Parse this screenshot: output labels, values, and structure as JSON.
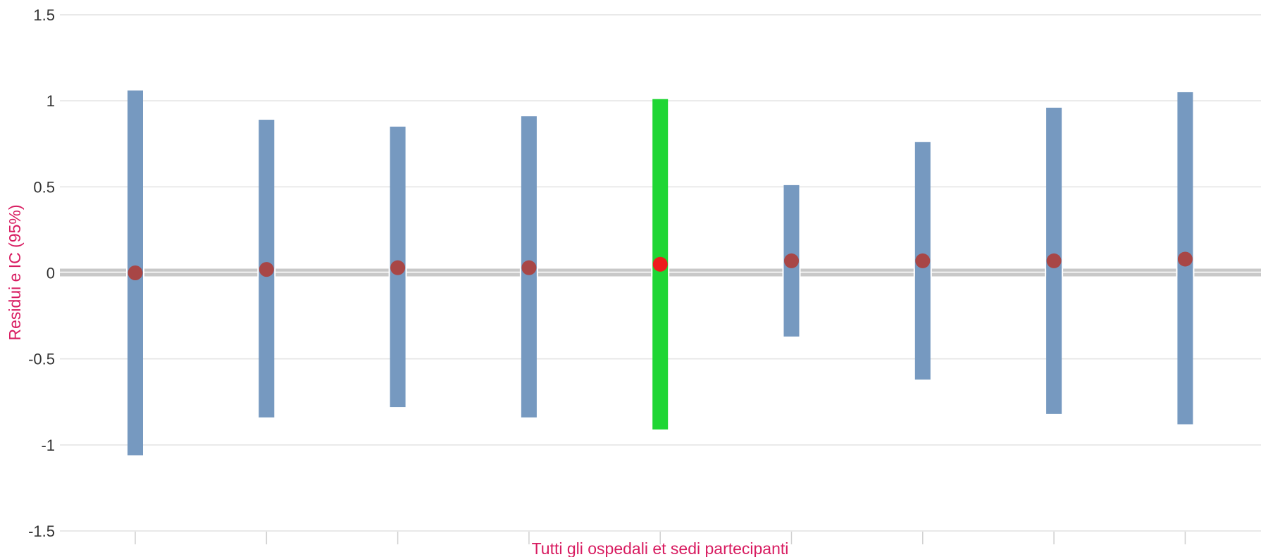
{
  "chart_data": {
    "type": "error-bar",
    "xlabel": "Tutti gli ospedali et sedi partecipanti",
    "ylabel": "Residui e IC (95%)",
    "ylim": [
      -1.5,
      1.5
    ],
    "yticks": [
      {
        "value": 1.5,
        "label": "1.5"
      },
      {
        "value": 1,
        "label": "1"
      },
      {
        "value": 0.5,
        "label": "0.5"
      },
      {
        "value": 0,
        "label": "0"
      },
      {
        "value": -0.5,
        "label": "-0.5"
      },
      {
        "value": -1,
        "label": "-1"
      },
      {
        "value": -1.5,
        "label": "-1.5"
      }
    ],
    "grid": true,
    "reference_line": 0,
    "points": [
      {
        "residual": 0.0,
        "ci_low": -1.06,
        "ci_high": 1.06,
        "highlighted": false
      },
      {
        "residual": 0.02,
        "ci_low": -0.84,
        "ci_high": 0.89,
        "highlighted": false
      },
      {
        "residual": 0.03,
        "ci_low": -0.78,
        "ci_high": 0.85,
        "highlighted": false
      },
      {
        "residual": 0.03,
        "ci_low": -0.84,
        "ci_high": 0.91,
        "highlighted": false
      },
      {
        "residual": 0.05,
        "ci_low": -0.91,
        "ci_high": 1.01,
        "highlighted": true
      },
      {
        "residual": 0.07,
        "ci_low": -0.37,
        "ci_high": 0.51,
        "highlighted": false
      },
      {
        "residual": 0.07,
        "ci_low": -0.62,
        "ci_high": 0.76,
        "highlighted": false
      },
      {
        "residual": 0.07,
        "ci_low": -0.82,
        "ci_high": 0.96,
        "highlighted": false
      },
      {
        "residual": 0.08,
        "ci_low": -0.88,
        "ci_high": 1.05,
        "highlighted": false
      }
    ],
    "colors": {
      "bar": "#7699c0",
      "bar_highlight": "#1fd634",
      "point": "#a84646",
      "point_highlight": "#ee1c1c",
      "axis_title": "#d81b60",
      "grid": "#e2e2e2",
      "zero_line": "#c8c8c8"
    }
  }
}
